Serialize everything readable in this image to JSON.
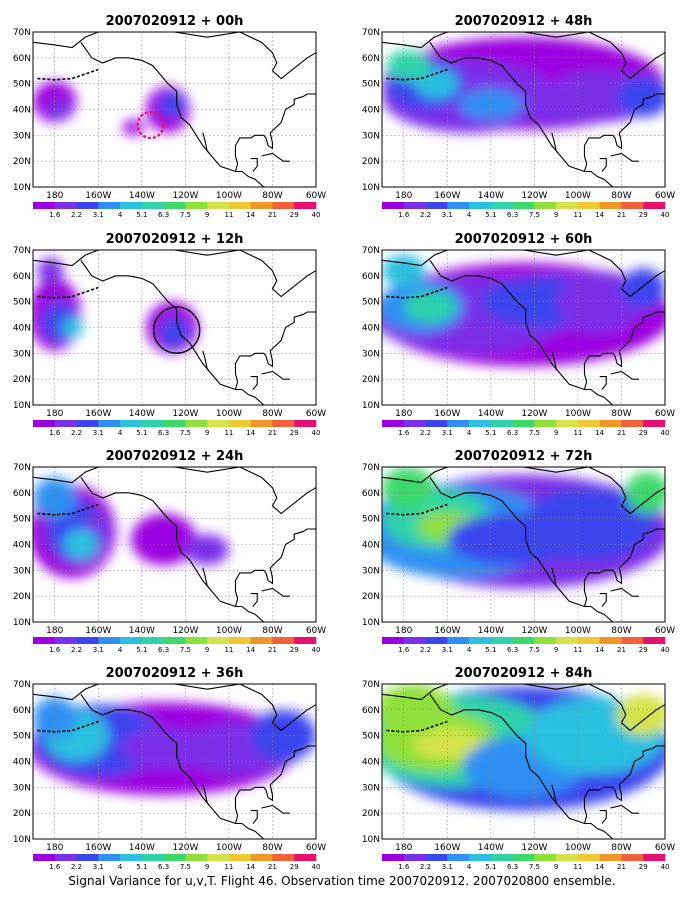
{
  "figure": {
    "caption": "Signal Variance for u,v,T. Flight 46. Observation time 2007020912. 2007020800 ensemble."
  },
  "axes": {
    "lat_labels": [
      "70N",
      "60N",
      "50N",
      "40N",
      "30N",
      "20N",
      "10N"
    ],
    "lon_labels": [
      "180",
      "160W",
      "140W",
      "120W",
      "100W",
      "80W",
      "60W"
    ]
  },
  "colorbar": {
    "labels": [
      "1.6",
      "2.2",
      "3.1",
      "4",
      "5.1",
      "6.3",
      "7.5",
      "9",
      "11",
      "14",
      "21",
      "29",
      "40"
    ],
    "colors": [
      "#ffffff",
      "#9b00e0",
      "#7a2fe8",
      "#3a45ee",
      "#2f8ff2",
      "#2cc0e0",
      "#2ed3a8",
      "#3cd86a",
      "#8fe03a",
      "#d5e34a",
      "#f0c832",
      "#f09528",
      "#f0603a",
      "#e8106e"
    ]
  },
  "panels": [
    {
      "title": "2007020912 + 00h"
    },
    {
      "title": "2007020912 + 48h"
    },
    {
      "title": "2007020912 + 12h"
    },
    {
      "title": "2007020912 + 60h"
    },
    {
      "title": "2007020912 + 24h"
    },
    {
      "title": "2007020912 + 72h"
    },
    {
      "title": "2007020912 + 36h"
    },
    {
      "title": "2007020912 + 84h"
    }
  ]
}
